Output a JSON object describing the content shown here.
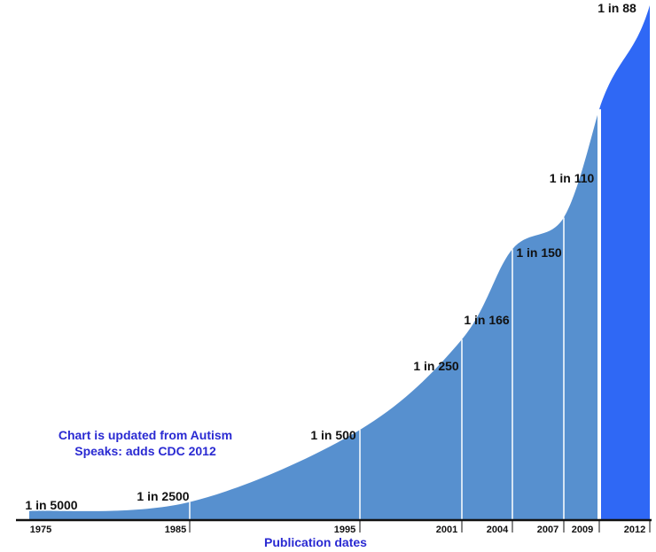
{
  "chart_data": {
    "type": "area",
    "title": "",
    "xlabel": "Publication dates",
    "ylabel": "",
    "categories": [
      "1975",
      "1985",
      "1995",
      "2001",
      "2004",
      "2007",
      "2009",
      "2012"
    ],
    "series": [
      {
        "values_text": [
          "1 in 5000",
          "1 in 2500",
          "1 in 500",
          "1 in 250",
          "1 in 166",
          "1 in 150",
          "1 in 110",
          "1 in 88"
        ],
        "values": [
          0.02,
          0.04,
          0.2,
          0.4,
          0.6,
          0.67,
          0.91,
          1.14
        ]
      }
    ],
    "grid": false,
    "legend": "none",
    "annotation": {
      "line1": "Chart is updated from Autism",
      "line2": "Speaks: adds CDC 2012"
    },
    "colors": {
      "area": "#5790cf",
      "highlight": "#2f68f5",
      "annotation": "#2a2ad2",
      "axis_title": "#2a2ad2",
      "axis_line": "#111111",
      "divider": "#ffffff"
    }
  }
}
